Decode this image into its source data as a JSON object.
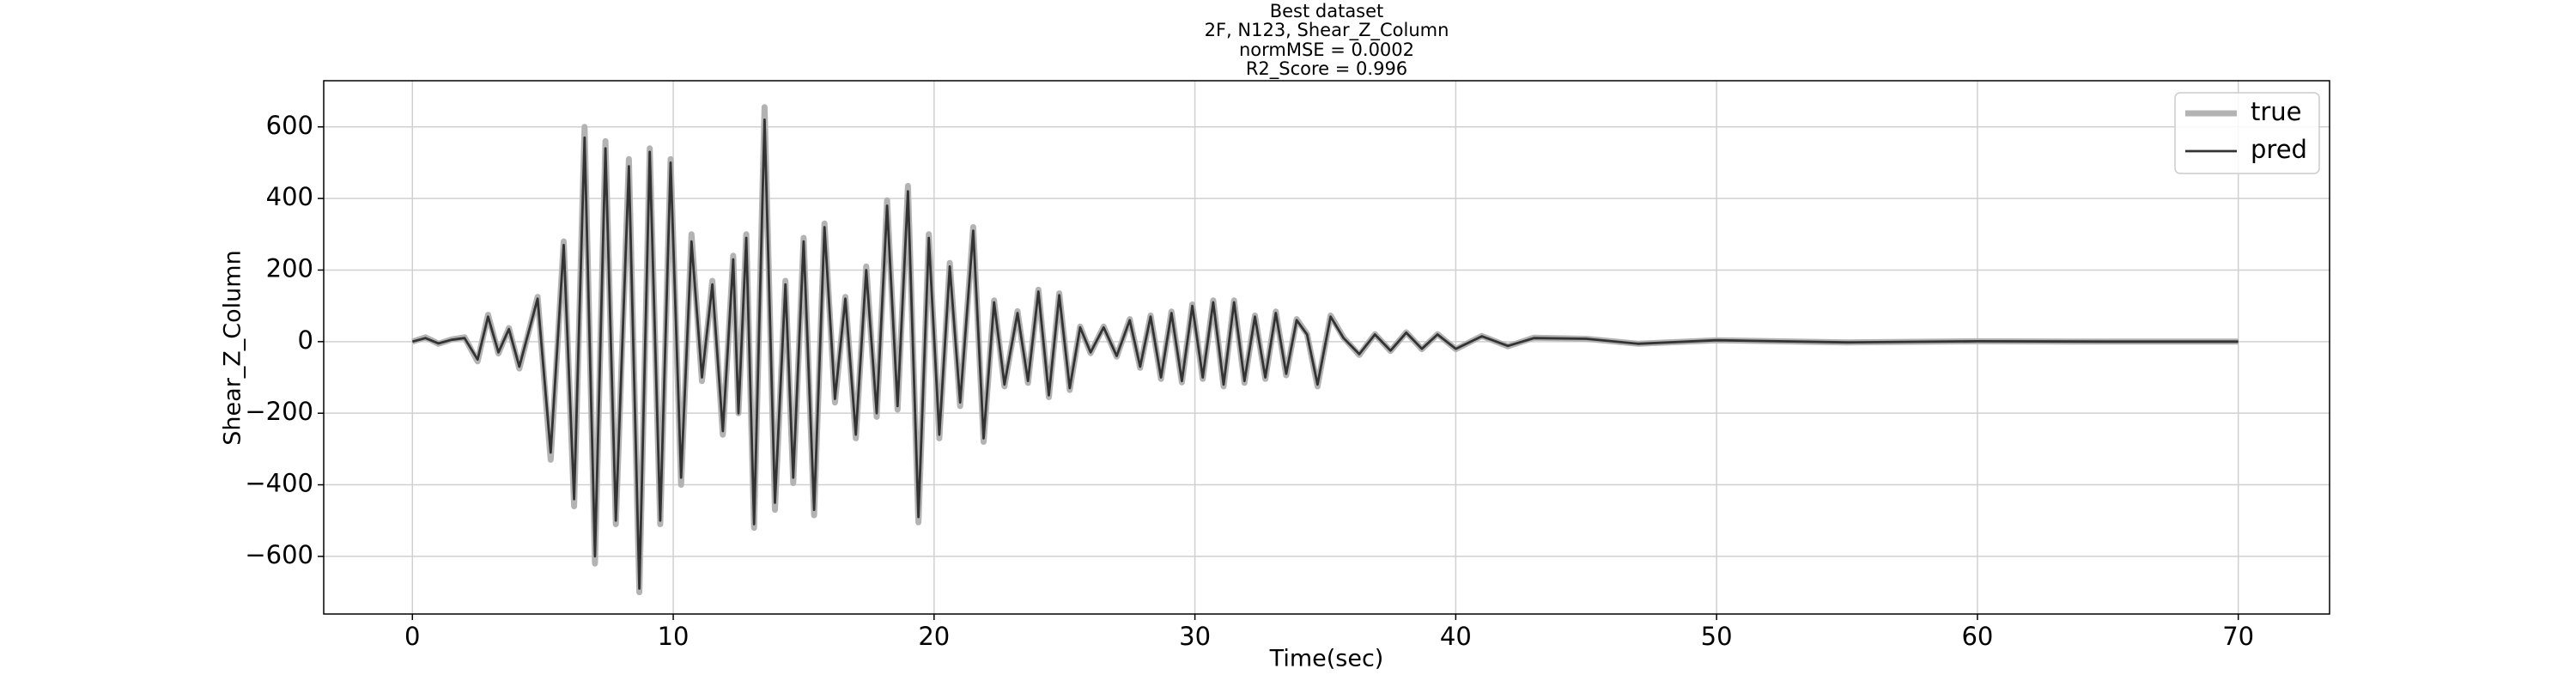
{
  "chart_data": {
    "type": "line",
    "title_lines": [
      "Best dataset",
      "2F, N123, Shear_Z_Column",
      "normMSE = 0.0002",
      "R2_Score = 0.996"
    ],
    "x_label": "Time(sec)",
    "y_label": "Shear_Z_Column",
    "x": [
      0,
      0.5,
      1.0,
      1.5,
      2.0,
      2.5,
      2.9,
      3.3,
      3.7,
      4.1,
      4.8,
      5.3,
      5.8,
      6.2,
      6.6,
      7.0,
      7.4,
      7.8,
      8.3,
      8.7,
      9.1,
      9.5,
      9.9,
      10.3,
      10.7,
      11.1,
      11.5,
      11.9,
      12.3,
      12.5,
      12.8,
      13.1,
      13.5,
      13.9,
      14.3,
      14.6,
      15.0,
      15.4,
      15.8,
      16.2,
      16.6,
      17.0,
      17.4,
      17.8,
      18.2,
      18.6,
      19.0,
      19.4,
      19.8,
      20.2,
      20.6,
      21.0,
      21.5,
      21.9,
      22.3,
      22.7,
      23.2,
      23.6,
      24.0,
      24.4,
      24.8,
      25.2,
      25.6,
      26.0,
      26.5,
      27.0,
      27.5,
      27.9,
      28.3,
      28.7,
      29.1,
      29.5,
      29.9,
      30.3,
      30.7,
      31.1,
      31.5,
      31.9,
      32.3,
      32.7,
      33.1,
      33.5,
      33.9,
      34.3,
      34.7,
      35.2,
      35.7,
      36.3,
      36.9,
      37.5,
      38.1,
      38.7,
      39.3,
      40.0,
      41,
      42,
      43,
      45,
      47,
      50,
      55,
      60,
      65,
      70
    ],
    "series": [
      {
        "name": "true",
        "color": "#b3b3b3",
        "values": [
          0,
          12,
          -6,
          6,
          12,
          -55,
          75,
          -33,
          38,
          -75,
          125,
          -330,
          280,
          -460,
          600,
          -620,
          560,
          -510,
          510,
          -700,
          540,
          -510,
          510,
          -400,
          300,
          -110,
          170,
          -260,
          240,
          -200,
          300,
          -520,
          655,
          -470,
          170,
          -395,
          290,
          -485,
          330,
          -170,
          125,
          -270,
          210,
          -210,
          395,
          -190,
          435,
          -505,
          300,
          -270,
          220,
          -180,
          320,
          -280,
          115,
          -125,
          85,
          -115,
          145,
          -155,
          135,
          -135,
          42,
          -32,
          42,
          -42,
          63,
          -73,
          73,
          -104,
          84,
          -114,
          104,
          -104,
          115,
          -125,
          115,
          -115,
          73,
          -104,
          84,
          -94,
          63,
          21,
          -125,
          73,
          11,
          -37,
          21,
          -26,
          26,
          -21,
          21,
          -21,
          16,
          -13,
          11,
          8,
          -6,
          4,
          -2,
          1,
          0,
          0
        ]
      },
      {
        "name": "pred",
        "color": "#333333",
        "values": [
          0,
          10,
          -5,
          5,
          10,
          -50,
          70,
          -30,
          35,
          -70,
          120,
          -310,
          270,
          -440,
          570,
          -600,
          540,
          -500,
          490,
          -690,
          530,
          -500,
          500,
          -380,
          280,
          -100,
          160,
          -250,
          230,
          -200,
          290,
          -510,
          620,
          -450,
          160,
          -380,
          280,
          -470,
          320,
          -160,
          120,
          -260,
          200,
          -200,
          380,
          -180,
          420,
          -490,
          290,
          -260,
          210,
          -170,
          310,
          -270,
          110,
          -120,
          80,
          -110,
          140,
          -150,
          130,
          -130,
          40,
          -30,
          40,
          -40,
          60,
          -70,
          70,
          -100,
          80,
          -110,
          100,
          -100,
          110,
          -120,
          110,
          -110,
          70,
          -100,
          80,
          -90,
          60,
          20,
          -120,
          70,
          10,
          -35,
          20,
          -25,
          25,
          -20,
          20,
          -20,
          15,
          -12,
          10,
          8,
          -6,
          4,
          -2,
          1,
          0,
          0
        ]
      }
    ],
    "xlim": [
      -3.4,
      73.5
    ],
    "ylim": [
      -761,
      729
    ],
    "xticks": [
      0,
      10,
      20,
      30,
      40,
      50,
      60,
      70
    ],
    "yticks": [
      {
        "value": -600,
        "label": "−600"
      },
      {
        "value": -400,
        "label": "−400"
      },
      {
        "value": -200,
        "label": "−200"
      },
      0,
      200,
      400,
      600
    ],
    "grid": true,
    "legend": "upper right"
  }
}
